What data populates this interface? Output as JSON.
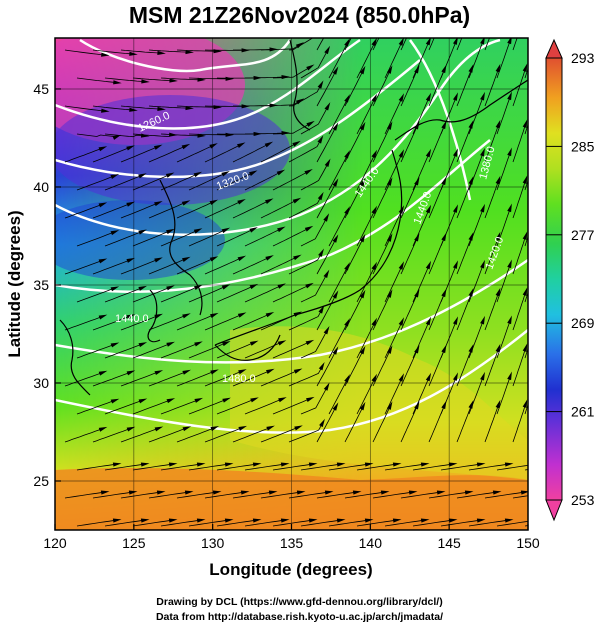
{
  "title": "MSM 21Z26Nov2024 (850.0hPa)",
  "xlabel": "Longitude (degrees)",
  "ylabel": "Latitude  (degrees)",
  "x_ticks": [
    "120",
    "125",
    "130",
    "135",
    "140",
    "145",
    "150"
  ],
  "y_ticks": [
    "25",
    "30",
    "35",
    "40",
    "45"
  ],
  "colorbar_ticks": [
    "293",
    "285",
    "277",
    "269",
    "261",
    "253"
  ],
  "contour_labels": [
    "1260.0",
    "1320.0",
    "1440.0",
    "1440.0",
    "1380.0",
    "1440.0",
    "1480.0",
    "1420.0"
  ],
  "footer_line1": "Drawing by DCL (https://www.gfd-dennou.org/library/dcl/)",
  "footer_line2": "Data from http://database.rish.kyoto-u.ac.jp/arch/jmadata/",
  "chart_data": {
    "type": "heatmap",
    "variable": "temperature (colour shading) with geopotential height contours and streamlines",
    "level": "850.0hPa",
    "xlim": [
      120,
      150
    ],
    "ylim": [
      22.5,
      47.6
    ],
    "grid": true,
    "colorbar": {
      "min": 253,
      "max": 293,
      "ticks": [
        253,
        261,
        269,
        277,
        285,
        293
      ]
    },
    "color_scale": [
      "#f040a0",
      "#c030d0",
      "#7a30d8",
      "#3030d0",
      "#2a60e8",
      "#20b0e0",
      "#20d0b0",
      "#30d060",
      "#50e020",
      "#a0e020",
      "#e0e020",
      "#f0b020",
      "#f08020",
      "#e04040"
    ],
    "contours": [
      1260,
      1320,
      1380,
      1420,
      1440,
      1480
    ]
  }
}
